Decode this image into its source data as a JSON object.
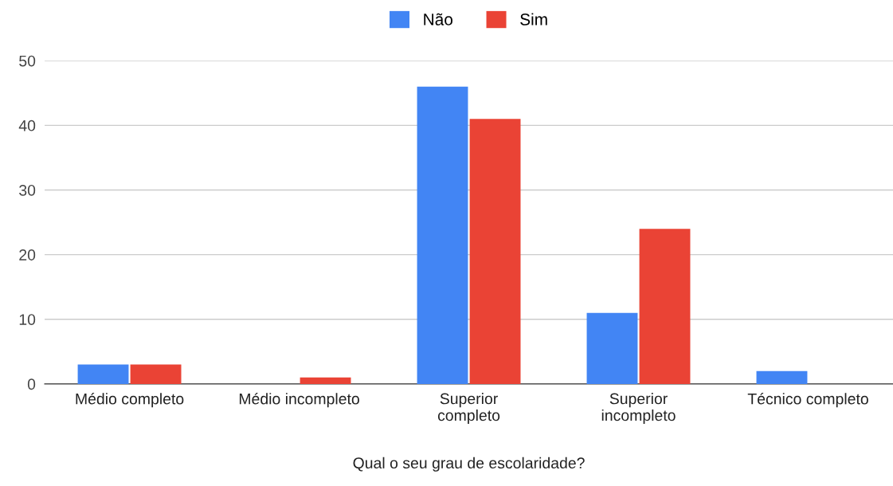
{
  "chart_data": {
    "type": "bar",
    "xlabel": "Qual o seu grau de escolaridade?",
    "categories": [
      "Médio completo",
      "Médio incompleto",
      "Superior\ncompleto",
      "Superior\nincompleto",
      "Técnico completo"
    ],
    "series": [
      {
        "name": "Não",
        "color": "#4285f4",
        "values": [
          3,
          0,
          46,
          11,
          2
        ]
      },
      {
        "name": "Sim",
        "color": "#ea4335",
        "values": [
          3,
          1,
          41,
          24,
          0
        ]
      }
    ],
    "ylim": [
      0,
      50
    ],
    "yticks": [
      0,
      10,
      20,
      30,
      40,
      50
    ],
    "grid": "y",
    "legend": "top"
  }
}
